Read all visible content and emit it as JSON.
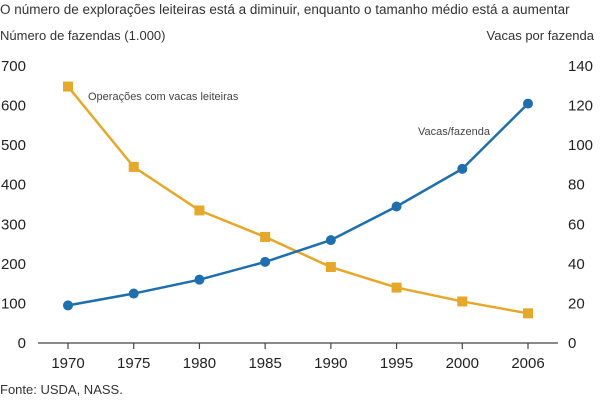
{
  "colors": {
    "farms": "#e6a82a",
    "cows": "#1f6fae",
    "axis": "#444444"
  },
  "chart_data": {
    "type": "line",
    "title": "O número de explorações leiteiras está a diminuir, enquanto o tamanho médio está a aumentar",
    "ylabel_left": "Número de fazendas (1.000)",
    "ylabel_right": "Vacas por fazenda",
    "source": "Fonte: USDA, NASS.",
    "categories": [
      "1970",
      "1975",
      "1980",
      "1985",
      "1990",
      "1995",
      "2000",
      "2006"
    ],
    "ylim_left": [
      0,
      700
    ],
    "ylim_right": [
      0,
      140
    ],
    "yticks_left": [
      "0",
      "100",
      "200",
      "300",
      "400",
      "500",
      "600",
      "700"
    ],
    "yticks_right": [
      "0",
      "20",
      "40",
      "60",
      "80",
      "100",
      "120",
      "140"
    ],
    "grid": false,
    "series": [
      {
        "name": "Operações com vacas leiteiras",
        "axis": "left",
        "marker": "square",
        "values": [
          648,
          445,
          335,
          268,
          192,
          140,
          105,
          75
        ]
      },
      {
        "name": "Vacas/fazenda",
        "axis": "right",
        "marker": "circle",
        "values": [
          19,
          25,
          32,
          41,
          52,
          69,
          88,
          121
        ]
      }
    ]
  }
}
